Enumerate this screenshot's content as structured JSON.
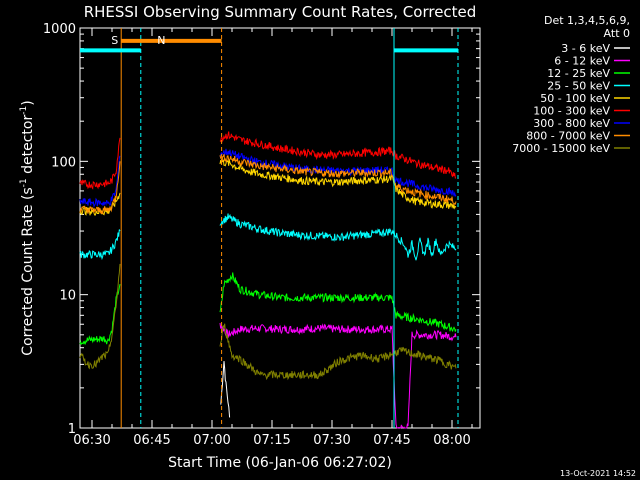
{
  "chart_data": {
    "type": "line",
    "title": "RHESSI Observing Summary Count Rates, Corrected",
    "xlabel": "Start Time (06-Jan-06 06:27:02)",
    "ylabel_main": "Corrected Count Rate (s",
    "ylabel_exp": "-1",
    "ylabel_tail": " detector",
    "ylabel_end": ")",
    "x_scale": "time (minutes after 06:27:02)",
    "y_scale": "log",
    "xlim": [
      0,
      100
    ],
    "ylim": [
      1,
      1000
    ],
    "x_ticks": [
      {
        "label": "06:30",
        "value": 3
      },
      {
        "label": "06:45",
        "value": 18
      },
      {
        "label": "07:00",
        "value": 33
      },
      {
        "label": "07:15",
        "value": 48
      },
      {
        "label": "07:30",
        "value": 63
      },
      {
        "label": "07:45",
        "value": 78
      },
      {
        "label": "08:00",
        "value": 93
      }
    ],
    "y_ticks": [
      {
        "label": "1",
        "value": 1
      },
      {
        "label": "10",
        "value": 10
      },
      {
        "label": "100",
        "value": 100
      },
      {
        "label": "1000",
        "value": 1000
      }
    ],
    "legend": {
      "position": "top-right",
      "header": [
        "Det 1,3,4,5,6,9,",
        "Att 0"
      ],
      "entries": [
        {
          "label": "3 - 6 keV",
          "color": "#ffffff"
        },
        {
          "label": "6 - 12 keV",
          "color": "#ff00ff"
        },
        {
          "label": "12 - 25 keV",
          "color": "#00ff00"
        },
        {
          "label": "25 - 50 keV",
          "color": "#00ffff"
        },
        {
          "label": "50 - 100 keV",
          "color": "#ffd700"
        },
        {
          "label": "100 - 300 keV",
          "color": "#ff0000"
        },
        {
          "label": "300 - 800 keV",
          "color": "#0000ff"
        },
        {
          "label": "800 - 7000 keV",
          "color": "#ff8c00"
        },
        {
          "label": "7000 - 15000 keV",
          "color": "#808000"
        }
      ]
    },
    "gaps": [
      [
        10,
        35
      ]
    ],
    "series": [
      {
        "name": "3 - 6 keV",
        "color": "#ffffff",
        "points": [
          [
            35.2,
            1.5
          ],
          [
            35.6,
            2.2
          ],
          [
            36,
            3.2
          ],
          [
            36.5,
            2.1
          ],
          [
            37,
            1.6
          ],
          [
            37.4,
            1.2
          ]
        ]
      },
      {
        "name": "6 - 12 keV",
        "color": "#ff00ff",
        "points": [
          [
            35,
            6
          ],
          [
            37,
            5
          ],
          [
            40,
            5.5
          ],
          [
            45,
            5.6
          ],
          [
            50,
            5.5
          ],
          [
            55,
            5.5
          ],
          [
            60,
            5.6
          ],
          [
            65,
            5.5
          ],
          [
            70,
            5.5
          ],
          [
            75,
            5.5
          ],
          [
            78,
            5.5
          ],
          [
            79,
            1
          ],
          [
            82,
            1
          ],
          [
            83,
            5
          ],
          [
            86,
            5
          ],
          [
            90,
            5
          ],
          [
            94,
            4.8
          ]
        ]
      },
      {
        "name": "12 - 25 keV",
        "color": "#00ff00",
        "points": [
          [
            0,
            4.5
          ],
          [
            3,
            4.6
          ],
          [
            6,
            4.7
          ],
          [
            7,
            4.5
          ],
          [
            8,
            5.5
          ],
          [
            9,
            9
          ],
          [
            10,
            12
          ],
          [
            35,
            7
          ],
          [
            36,
            12
          ],
          [
            38,
            14
          ],
          [
            40,
            11
          ],
          [
            45,
            10
          ],
          [
            50,
            9.5
          ],
          [
            55,
            9.5
          ],
          [
            60,
            9.5
          ],
          [
            65,
            9.5
          ],
          [
            70,
            9.5
          ],
          [
            75,
            9.5
          ],
          [
            78,
            9.5
          ],
          [
            79,
            7
          ],
          [
            85,
            6.5
          ],
          [
            90,
            6
          ],
          [
            94,
            5.5
          ]
        ]
      },
      {
        "name": "25 - 50 keV",
        "color": "#00ffff",
        "points": [
          [
            0,
            20
          ],
          [
            3,
            20
          ],
          [
            6,
            20
          ],
          [
            7,
            20
          ],
          [
            8,
            22
          ],
          [
            9,
            25
          ],
          [
            10,
            30
          ],
          [
            35,
            35
          ],
          [
            37,
            38
          ],
          [
            40,
            34
          ],
          [
            45,
            31
          ],
          [
            50,
            29
          ],
          [
            55,
            28
          ],
          [
            60,
            27.5
          ],
          [
            65,
            27
          ],
          [
            70,
            28
          ],
          [
            75,
            29
          ],
          [
            78,
            30
          ],
          [
            79,
            28
          ],
          [
            81,
            24
          ],
          [
            82,
            20
          ],
          [
            83,
            24
          ],
          [
            84,
            19
          ],
          [
            85,
            25
          ],
          [
            86,
            20
          ],
          [
            87,
            25
          ],
          [
            88,
            20
          ],
          [
            89,
            26
          ],
          [
            90,
            20
          ],
          [
            92,
            24
          ],
          [
            94,
            22
          ]
        ]
      },
      {
        "name": "50 - 100 keV",
        "color": "#ffd700",
        "points": [
          [
            0,
            43
          ],
          [
            3,
            42
          ],
          [
            6,
            42
          ],
          [
            7,
            42
          ],
          [
            8,
            45
          ],
          [
            9,
            50
          ],
          [
            10,
            58
          ],
          [
            35,
            100
          ],
          [
            38,
            95
          ],
          [
            40,
            88
          ],
          [
            45,
            80
          ],
          [
            50,
            76
          ],
          [
            55,
            72
          ],
          [
            60,
            70
          ],
          [
            65,
            70
          ],
          [
            70,
            72
          ],
          [
            75,
            73
          ],
          [
            78,
            74
          ],
          [
            79,
            62
          ],
          [
            81,
            55
          ],
          [
            84,
            50
          ],
          [
            88,
            48
          ],
          [
            92,
            47
          ],
          [
            94,
            46
          ]
        ]
      },
      {
        "name": "100 - 300 keV",
        "color": "#ff0000",
        "points": [
          [
            0,
            68
          ],
          [
            3,
            67
          ],
          [
            6,
            68
          ],
          [
            7,
            68
          ],
          [
            8,
            72
          ],
          [
            9,
            85
          ],
          [
            10,
            150
          ],
          [
            35,
            150
          ],
          [
            37,
            158
          ],
          [
            40,
            145
          ],
          [
            45,
            135
          ],
          [
            50,
            125
          ],
          [
            55,
            118
          ],
          [
            60,
            112
          ],
          [
            65,
            112
          ],
          [
            70,
            115
          ],
          [
            75,
            118
          ],
          [
            78,
            120
          ],
          [
            79,
            110
          ],
          [
            81,
            105
          ],
          [
            84,
            97
          ],
          [
            88,
            90
          ],
          [
            92,
            85
          ],
          [
            94,
            75
          ]
        ]
      },
      {
        "name": "300 - 800 keV",
        "color": "#0000ff",
        "points": [
          [
            0,
            50
          ],
          [
            3,
            49
          ],
          [
            6,
            49
          ],
          [
            7,
            48
          ],
          [
            8,
            52
          ],
          [
            9,
            60
          ],
          [
            10,
            110
          ],
          [
            35,
            115
          ],
          [
            37,
            118
          ],
          [
            40,
            108
          ],
          [
            45,
            98
          ],
          [
            50,
            93
          ],
          [
            55,
            88
          ],
          [
            60,
            86
          ],
          [
            65,
            85
          ],
          [
            70,
            85
          ],
          [
            75,
            86
          ],
          [
            78,
            85
          ],
          [
            79,
            72
          ],
          [
            81,
            70
          ],
          [
            84,
            66
          ],
          [
            88,
            62
          ],
          [
            92,
            60
          ],
          [
            94,
            56
          ]
        ]
      },
      {
        "name": "800 - 7000 keV",
        "color": "#ff8c00",
        "points": [
          [
            0,
            44
          ],
          [
            3,
            43
          ],
          [
            6,
            43
          ],
          [
            7,
            43
          ],
          [
            8,
            46
          ],
          [
            9,
            55
          ],
          [
            10,
            100
          ],
          [
            35,
            105
          ],
          [
            37,
            107
          ],
          [
            40,
            100
          ],
          [
            45,
            92
          ],
          [
            50,
            88
          ],
          [
            55,
            84
          ],
          [
            60,
            82
          ],
          [
            65,
            81
          ],
          [
            70,
            82
          ],
          [
            75,
            82
          ],
          [
            78,
            82
          ],
          [
            79,
            65
          ],
          [
            81,
            62
          ],
          [
            84,
            58
          ],
          [
            88,
            55
          ],
          [
            92,
            52
          ],
          [
            94,
            50
          ]
        ]
      },
      {
        "name": "7000 - 15000 keV",
        "color": "#808000",
        "points": [
          [
            0,
            3.5
          ],
          [
            2,
            3
          ],
          [
            4,
            3
          ],
          [
            6,
            3.5
          ],
          [
            7,
            3.5
          ],
          [
            8,
            5
          ],
          [
            9,
            8
          ],
          [
            10,
            17
          ],
          [
            35,
            4
          ],
          [
            36,
            6
          ],
          [
            38,
            3.5
          ],
          [
            40,
            3.3
          ],
          [
            45,
            2.5
          ],
          [
            50,
            2.5
          ],
          [
            55,
            2.5
          ],
          [
            60,
            2.5
          ],
          [
            65,
            3.2
          ],
          [
            70,
            3.5
          ],
          [
            75,
            3.3
          ],
          [
            78,
            3.6
          ],
          [
            80,
            3.8
          ],
          [
            85,
            3.5
          ],
          [
            90,
            3.2
          ],
          [
            94,
            2.8
          ]
        ]
      }
    ],
    "annotations": [
      {
        "label": "S",
        "color": "#ff8c00",
        "x_start": 10.3,
        "x_end": 35.4,
        "y": 800
      },
      {
        "label": "N",
        "color": "#00ffff",
        "x_start": 0,
        "x_end": 15.2,
        "y": 680
      },
      {
        "label": "N",
        "color": "#00ffff",
        "x_start": 78.5,
        "x_end": 94.5,
        "y": 680
      }
    ],
    "vlines": [
      {
        "x": 10.3,
        "color": "#ff8c00",
        "style": "solid"
      },
      {
        "x": 15.2,
        "color": "#00ffff",
        "style": "dashed"
      },
      {
        "x": 35.4,
        "color": "#ff8c00",
        "style": "dashed"
      },
      {
        "x": 78.5,
        "color": "#00ffff",
        "style": "solid"
      },
      {
        "x": 94.5,
        "color": "#00ffff",
        "style": "dashed"
      }
    ],
    "timestamp": "13-Oct-2021 14:52"
  }
}
